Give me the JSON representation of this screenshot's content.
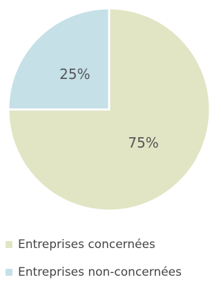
{
  "chart_data": {
    "type": "pie",
    "slices": [
      {
        "name": "Entreprises concernées",
        "value": 75,
        "label": "75%",
        "color": "#e1e5c4"
      },
      {
        "name": "Entreprises non-concernées",
        "value": 25,
        "label": "25%",
        "color": "#c5e0e7"
      }
    ],
    "legend_position": "bottom",
    "slice_separator_color": "#ffffff"
  },
  "legend": {
    "items": [
      {
        "label": "Entreprises concernées",
        "color": "#e1e5c4"
      },
      {
        "label": "Entreprises non-concernées",
        "color": "#c5e0e7"
      }
    ]
  }
}
